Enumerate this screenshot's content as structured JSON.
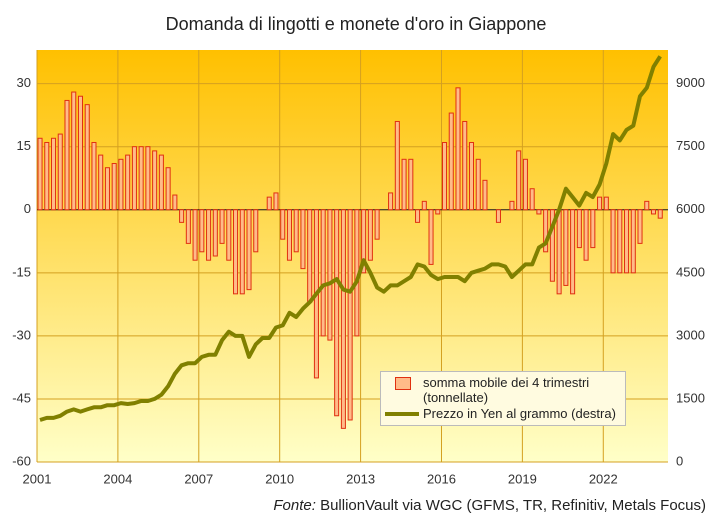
{
  "chart_data": {
    "type": "bar-line",
    "title": "Domanda di lingotti e monete d'oro in Giappone",
    "x": [
      2001,
      2001.25,
      2001.5,
      2001.75,
      2002,
      2002.25,
      2002.5,
      2002.75,
      2003,
      2003.25,
      2003.5,
      2003.75,
      2004,
      2004.25,
      2004.5,
      2004.75,
      2005,
      2005.25,
      2005.5,
      2005.75,
      2006,
      2006.25,
      2006.5,
      2006.75,
      2007,
      2007.25,
      2007.5,
      2007.75,
      2008,
      2008.25,
      2008.5,
      2008.75,
      2009,
      2009.25,
      2009.5,
      2009.75,
      2010,
      2010.25,
      2010.5,
      2010.75,
      2011,
      2011.25,
      2011.5,
      2011.75,
      2012,
      2012.25,
      2012.5,
      2012.75,
      2013,
      2013.25,
      2013.5,
      2013.75,
      2014,
      2014.25,
      2014.5,
      2014.75,
      2015,
      2015.25,
      2015.5,
      2015.75,
      2016,
      2016.25,
      2016.5,
      2016.75,
      2017,
      2017.25,
      2017.5,
      2017.75,
      2018,
      2018.25,
      2018.5,
      2018.75,
      2019,
      2019.25,
      2019.5,
      2019.75,
      2020,
      2020.25,
      2020.5,
      2020.75,
      2021,
      2021.25,
      2021.5,
      2021.75,
      2022,
      2022.25,
      2022.5,
      2022.75,
      2023,
      2023.25,
      2023.5,
      2023.75,
      2024
    ],
    "series": [
      {
        "name": "somma mobile dei 4 trimestri (tonnellate)",
        "color": "#ffbb88",
        "edge_color": "#e03010",
        "values": [
          17,
          16,
          17,
          18,
          26,
          28,
          27,
          25,
          16,
          13,
          10,
          11,
          12,
          13,
          15,
          15,
          15,
          14,
          13,
          10,
          3.5,
          -3,
          -8,
          -12,
          -10,
          -12,
          -11,
          -8,
          -12,
          -20,
          -20,
          -19,
          -10,
          0,
          3,
          4,
          -7,
          -12,
          -10,
          -14,
          -22,
          -40,
          -30,
          -31,
          -49,
          -52,
          -50,
          -30,
          -15,
          -12,
          -7,
          0,
          4,
          21,
          12,
          12,
          -3,
          2,
          -13,
          -1,
          16,
          23,
          29,
          21,
          16,
          12,
          7,
          0,
          -3,
          0,
          2,
          14,
          12,
          5,
          -1,
          -10,
          -17,
          -20,
          -18,
          -20,
          -9,
          -12,
          -9,
          3,
          3,
          -15,
          -15,
          -15,
          -15,
          -8,
          2,
          -1,
          -2
        ]
      },
      {
        "name": "Prezzo in Yen al grammo (destra)",
        "color": "#808000",
        "axis": "y2",
        "values": [
          1000,
          1050,
          1050,
          1100,
          1200,
          1250,
          1200,
          1250,
          1300,
          1300,
          1350,
          1350,
          1400,
          1380,
          1400,
          1450,
          1450,
          1500,
          1600,
          1800,
          2100,
          2300,
          2350,
          2350,
          2500,
          2550,
          2550,
          2900,
          3100,
          3000,
          3000,
          2500,
          2800,
          2950,
          2950,
          3200,
          3250,
          3550,
          3450,
          3650,
          3800,
          4000,
          4200,
          4250,
          4350,
          4100,
          4050,
          4300,
          4800,
          4500,
          4150,
          4050,
          4200,
          4200,
          4300,
          4400,
          4700,
          4650,
          4450,
          4350,
          4400,
          4400,
          4400,
          4300,
          4500,
          4550,
          4600,
          4700,
          4700,
          4650,
          4400,
          4550,
          4700,
          4700,
          5100,
          5200,
          5600,
          6000,
          6500,
          6300,
          6100,
          6400,
          6300,
          6600,
          7100,
          7800,
          7650,
          7900,
          8000,
          8700,
          8900,
          9400,
          9650
        ]
      }
    ],
    "xlim": [
      2001,
      2024.4
    ],
    "xticks": [
      2001,
      2004,
      2007,
      2010,
      2013,
      2016,
      2019,
      2022
    ],
    "ylim": [
      -60,
      38
    ],
    "yticks": [
      -60,
      -45,
      -30,
      -15,
      0,
      15,
      30
    ],
    "y2lim": [
      0,
      9800
    ],
    "y2ticks": [
      0,
      1500,
      3000,
      4500,
      6000,
      7500,
      9000
    ],
    "grid": true,
    "source_label": "Fonte:",
    "source": "BullionVault via WGC (GFMS, TR, Refinitiv, Metals Focus)"
  }
}
